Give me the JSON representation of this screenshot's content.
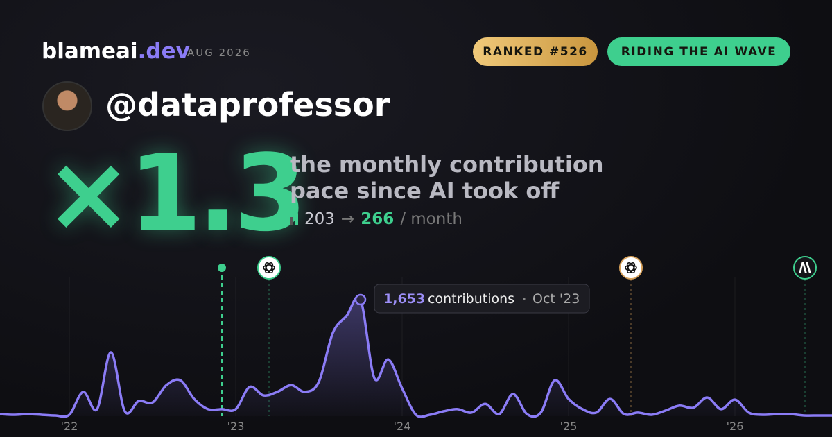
{
  "brand": {
    "name": "blameai",
    "tld": ".dev",
    "date": "AUG 2026"
  },
  "badges": [
    "RANKED #526",
    "RIDING THE AI WAVE"
  ],
  "user": {
    "handle": "@dataprofessor"
  },
  "headline": {
    "multiplier": "×1.3",
    "line1": "the monthly contribution",
    "line2": "pace since AI took off",
    "from": "203",
    "arrow": "→",
    "to": "266",
    "unit": "/ month"
  },
  "tooltip": {
    "value": "1,653",
    "label": "contributions",
    "date": "Oct '23"
  },
  "chart_data": {
    "type": "area",
    "color": "#8b7cf6",
    "categories": [
      null,
      null,
      null,
      null,
      null,
      "'22",
      null,
      null,
      null,
      null,
      null,
      null,
      null,
      null,
      null,
      null,
      null,
      "'23",
      null,
      null,
      null,
      null,
      null,
      null,
      null,
      null,
      null,
      null,
      null,
      "'24",
      null,
      null,
      null,
      null,
      null,
      null,
      null,
      null,
      null,
      null,
      null,
      "'25",
      null,
      null,
      null,
      null,
      null,
      null,
      null,
      null,
      null,
      null,
      null,
      "'26",
      null,
      null,
      null,
      null,
      null,
      null,
      null
    ],
    "values": [
      30,
      20,
      30,
      20,
      10,
      20,
      345,
      100,
      905,
      70,
      215,
      195,
      440,
      510,
      245,
      100,
      100,
      100,
      415,
      295,
      345,
      440,
      345,
      490,
      1180,
      1425,
      1653,
      540,
      805,
      395,
      20,
      20,
      70,
      100,
      50,
      175,
      30,
      315,
      30,
      50,
      510,
      245,
      100,
      50,
      245,
      30,
      50,
      20,
      80,
      150,
      120,
      265,
      100,
      235,
      50,
      20,
      30,
      30,
      10,
      10,
      10
    ],
    "ylim": [
      0,
      1700
    ],
    "grid": true
  }
}
